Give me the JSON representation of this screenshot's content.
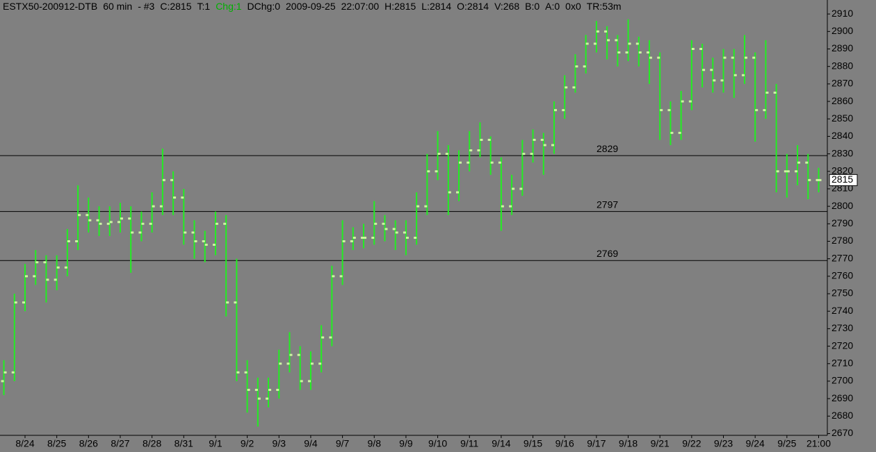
{
  "header": [
    "ESTX50-200912-DTB",
    "60 min",
    "- #3",
    "C:2815",
    "T:1",
    "Chg:1",
    "DChg:0",
    "2009-09-25",
    "22:07:00",
    "H:2815",
    "L:2814",
    "O:2814",
    "V:268",
    "B:0",
    "A:0",
    "0x0",
    "TR:53m"
  ],
  "chart_data": {
    "type": "ohlc",
    "categories": [
      null,
      null,
      "8/24",
      null,
      null,
      "8/25",
      null,
      null,
      "8/26",
      null,
      null,
      "8/27",
      null,
      null,
      "8/28",
      null,
      null,
      "8/31",
      null,
      null,
      "9/1",
      null,
      null,
      "9/2",
      null,
      null,
      "9/3",
      null,
      null,
      "9/4",
      null,
      null,
      "9/7",
      null,
      null,
      "9/8",
      null,
      null,
      "9/9",
      null,
      null,
      "9/10",
      null,
      null,
      "9/11",
      null,
      null,
      "9/14",
      null,
      null,
      "9/15",
      null,
      null,
      "9/16",
      null,
      null,
      "9/17",
      null,
      null,
      "9/18",
      null,
      null,
      "9/21",
      null,
      null,
      "9/22",
      null,
      null,
      "9/23",
      null,
      null,
      "9/24",
      null,
      null,
      "9/25",
      null,
      null,
      "21:00"
    ],
    "open": [
      2700,
      2705,
      2745,
      2760,
      2768,
      2758,
      2765,
      2780,
      2795,
      2792,
      2790,
      2791,
      2793,
      2785,
      2790,
      2800,
      2815,
      2805,
      2785,
      2780,
      2778,
      2790,
      2745,
      2705,
      2695,
      2690,
      2695,
      2710,
      2715,
      2700,
      2710,
      2725,
      2760,
      2780,
      2782,
      2782,
      2790,
      2787,
      2785,
      2782,
      2800,
      2820,
      2830,
      2808,
      2825,
      2832,
      2838,
      2825,
      2800,
      2810,
      2830,
      2838,
      2835,
      2855,
      2868,
      2880,
      2893,
      2900,
      2895,
      2888,
      2893,
      2888,
      2885,
      2855,
      2842,
      2860,
      2890,
      2878,
      2872,
      2885,
      2875,
      2885,
      2855,
      2865,
      2820,
      2820,
      2825,
      2815
    ],
    "high": [
      2712,
      2750,
      2767,
      2775,
      2772,
      2772,
      2787,
      2812,
      2805,
      2800,
      2800,
      2802,
      2800,
      2797,
      2808,
      2833,
      2820,
      2810,
      2792,
      2786,
      2797,
      2795,
      2770,
      2712,
      2702,
      2702,
      2718,
      2728,
      2720,
      2717,
      2732,
      2766,
      2792,
      2788,
      2790,
      2803,
      2795,
      2792,
      2792,
      2808,
      2830,
      2843,
      2835,
      2832,
      2843,
      2848,
      2840,
      2828,
      2818,
      2838,
      2844,
      2842,
      2860,
      2875,
      2887,
      2898,
      2906,
      2903,
      2898,
      2907,
      2897,
      2895,
      2888,
      2860,
      2866,
      2895,
      2893,
      2885,
      2890,
      2890,
      2898,
      2888,
      2895,
      2870,
      2830,
      2835,
      2830,
      2822
    ],
    "low": [
      2692,
      2700,
      2740,
      2755,
      2745,
      2752,
      2760,
      2775,
      2785,
      2783,
      2783,
      2785,
      2762,
      2780,
      2785,
      2795,
      2795,
      2778,
      2770,
      2768,
      2772,
      2737,
      2700,
      2682,
      2674,
      2685,
      2690,
      2705,
      2695,
      2695,
      2705,
      2720,
      2755,
      2775,
      2776,
      2778,
      2780,
      2775,
      2772,
      2778,
      2795,
      2815,
      2795,
      2803,
      2820,
      2828,
      2818,
      2786,
      2795,
      2806,
      2825,
      2818,
      2830,
      2850,
      2865,
      2876,
      2888,
      2884,
      2880,
      2883,
      2880,
      2870,
      2838,
      2835,
      2838,
      2855,
      2868,
      2865,
      2865,
      2862,
      2870,
      2837,
      2850,
      2808,
      2805,
      2812,
      2804,
      2808
    ],
    "close": [
      2705,
      2745,
      2760,
      2768,
      2758,
      2765,
      2780,
      2795,
      2792,
      2790,
      2791,
      2793,
      2785,
      2790,
      2800,
      2815,
      2805,
      2785,
      2780,
      2778,
      2790,
      2745,
      2705,
      2695,
      2690,
      2695,
      2710,
      2715,
      2700,
      2710,
      2725,
      2760,
      2780,
      2782,
      2782,
      2790,
      2787,
      2785,
      2782,
      2800,
      2820,
      2830,
      2808,
      2825,
      2832,
      2838,
      2825,
      2800,
      2810,
      2830,
      2838,
      2835,
      2855,
      2868,
      2880,
      2893,
      2900,
      2895,
      2888,
      2893,
      2888,
      2885,
      2855,
      2842,
      2860,
      2890,
      2878,
      2872,
      2885,
      2875,
      2885,
      2855,
      2865,
      2820,
      2820,
      2825,
      2815,
      2815
    ],
    "color": "#22ee22",
    "tick_color": "#ccf5a0",
    "levels": [
      2829,
      2797,
      2769
    ],
    "last_price": 2815,
    "ylim": [
      2669,
      2918
    ],
    "yticks": [
      2670,
      2680,
      2690,
      2700,
      2710,
      2720,
      2730,
      2740,
      2750,
      2760,
      2770,
      2780,
      2790,
      2800,
      2810,
      2820,
      2830,
      2840,
      2850,
      2860,
      2870,
      2880,
      2890,
      2900,
      2910
    ]
  }
}
